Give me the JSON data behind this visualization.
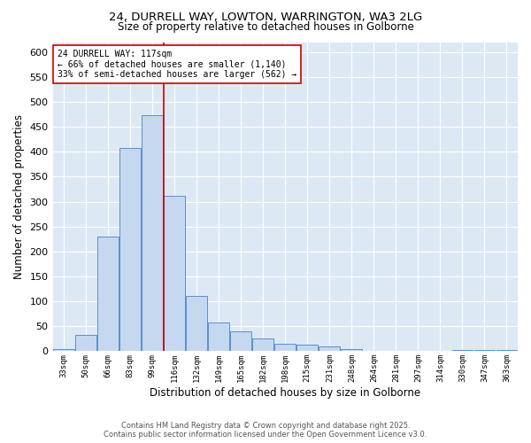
{
  "title_line1": "24, DURRELL WAY, LOWTON, WARRINGTON, WA3 2LG",
  "title_line2": "Size of property relative to detached houses in Golborne",
  "xlabel": "Distribution of detached houses by size in Golborne",
  "ylabel": "Number of detached properties",
  "bar_labels": [
    "33sqm",
    "50sqm",
    "66sqm",
    "83sqm",
    "99sqm",
    "116sqm",
    "132sqm",
    "149sqm",
    "165sqm",
    "182sqm",
    "198sqm",
    "215sqm",
    "231sqm",
    "248sqm",
    "264sqm",
    "281sqm",
    "297sqm",
    "314sqm",
    "330sqm",
    "347sqm",
    "363sqm"
  ],
  "bar_values": [
    5,
    32,
    230,
    407,
    473,
    312,
    111,
    57,
    40,
    26,
    15,
    14,
    10,
    4,
    0,
    0,
    0,
    0,
    3,
    3,
    3
  ],
  "bar_color": "#c5d8f0",
  "bar_edge_color": "#5b8fc9",
  "vline_color": "#cc0000",
  "annotation_text": "24 DURRELL WAY: 117sqm\n← 66% of detached houses are smaller (1,140)\n33% of semi-detached houses are larger (562) →",
  "annotation_box_color": "#ffffff",
  "annotation_box_edge": "#cc0000",
  "ylim": [
    0,
    620
  ],
  "yticks": [
    0,
    50,
    100,
    150,
    200,
    250,
    300,
    350,
    400,
    450,
    500,
    550,
    600
  ],
  "background_color": "#dce9f5",
  "grid_color": "#ffffff",
  "footer_line1": "Contains HM Land Registry data © Crown copyright and database right 2025.",
  "footer_line2": "Contains public sector information licensed under the Open Government Licence v3.0.",
  "figsize": [
    6.0,
    5.0
  ],
  "dpi": 100
}
